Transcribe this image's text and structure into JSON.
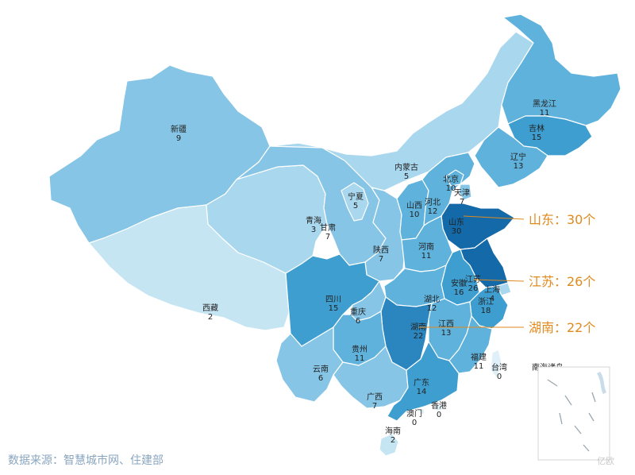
{
  "color_scale": [
    "#dff0f8",
    "#c6e5f3",
    "#a9d7ee",
    "#86c5e6",
    "#5fb2dc",
    "#3e9ed0",
    "#2b86bf",
    "#1469a8"
  ],
  "provinces": [
    {
      "id": "xinjiang",
      "name": "新疆",
      "value": 9
    },
    {
      "id": "xizang",
      "name": "西藏",
      "value": 2
    },
    {
      "id": "qinghai",
      "name": "青海",
      "value": 3
    },
    {
      "id": "gansu",
      "name": "甘肃",
      "value": 7
    },
    {
      "id": "neimenggu",
      "name": "内蒙古",
      "value": 5
    },
    {
      "id": "heilongjiang",
      "name": "黑龙江",
      "value": 11
    },
    {
      "id": "jilin",
      "name": "吉林",
      "value": 15
    },
    {
      "id": "liaoning",
      "name": "辽宁",
      "value": 13
    },
    {
      "id": "ningxia",
      "name": "宁夏",
      "value": 5
    },
    {
      "id": "shaanxi",
      "name": "陕西",
      "value": 7
    },
    {
      "id": "shanxi",
      "name": "山西",
      "value": 10
    },
    {
      "id": "hebei",
      "name": "河北",
      "value": 12
    },
    {
      "id": "beijing",
      "name": "北京",
      "value": 10
    },
    {
      "id": "tianjin",
      "name": "天津",
      "value": 7
    },
    {
      "id": "shandong",
      "name": "山东",
      "value": 30
    },
    {
      "id": "henan",
      "name": "河南",
      "value": 11
    },
    {
      "id": "jiangsu",
      "name": "江苏",
      "value": 26
    },
    {
      "id": "anhui",
      "name": "安徽",
      "value": 16
    },
    {
      "id": "shanghai",
      "name": "上海",
      "value": 4
    },
    {
      "id": "zhejiang",
      "name": "浙江",
      "value": 18
    },
    {
      "id": "hubei",
      "name": "湖北",
      "value": 12
    },
    {
      "id": "sichuan",
      "name": "四川",
      "value": 15
    },
    {
      "id": "chongqing",
      "name": "重庆",
      "value": 6
    },
    {
      "id": "hunan",
      "name": "湖南",
      "value": 22
    },
    {
      "id": "jiangxi",
      "name": "江西",
      "value": 13
    },
    {
      "id": "guizhou",
      "name": "贵州",
      "value": 11
    },
    {
      "id": "yunnan",
      "name": "云南",
      "value": 6
    },
    {
      "id": "guangxi",
      "name": "广西",
      "value": 7
    },
    {
      "id": "guangdong",
      "name": "广东",
      "value": 14
    },
    {
      "id": "fujian",
      "name": "福建",
      "value": 11
    },
    {
      "id": "taiwan",
      "name": "台湾",
      "value": 0
    },
    {
      "id": "hongkong",
      "name": "香港",
      "value": 0
    },
    {
      "id": "macau",
      "name": "澳门",
      "value": 0
    },
    {
      "id": "hainan",
      "name": "海南",
      "value": 2
    },
    {
      "id": "nanhai",
      "name": "南海诸岛",
      "value": 0
    }
  ],
  "callouts": [
    {
      "name": "山东",
      "text": "山东：30个"
    },
    {
      "name": "江苏",
      "text": "江苏：26个"
    },
    {
      "name": "湖南",
      "text": "湖南：22个"
    }
  ],
  "source": "数据来源：智慧城市网、住建部",
  "watermark": "亿欧"
}
